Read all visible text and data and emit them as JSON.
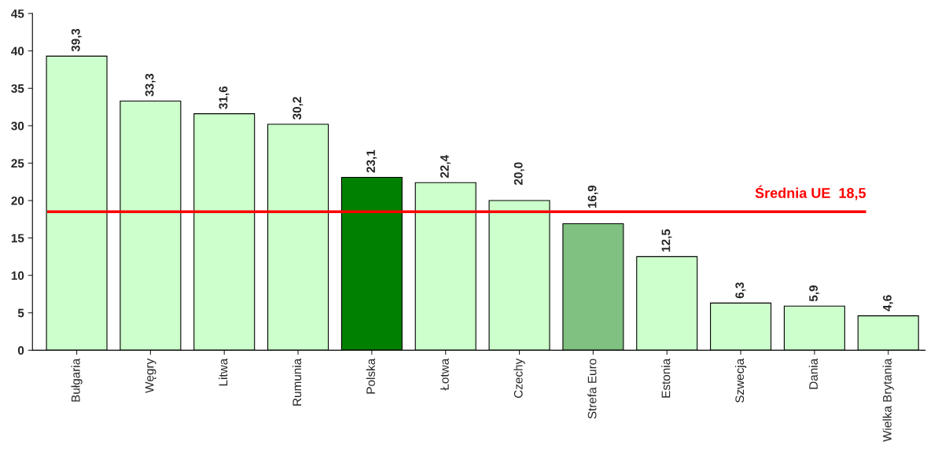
{
  "chart_data": {
    "type": "bar",
    "categories": [
      "Bułgaria",
      "Węgry",
      "Litwa",
      "Rumunia",
      "Polska",
      "Łotwa",
      "Czechy",
      "Strefa Euro",
      "Estonia",
      "Szwecja",
      "Dania",
      "Wielka Brytania"
    ],
    "values": [
      39.3,
      33.3,
      31.6,
      30.2,
      23.1,
      22.4,
      20.0,
      16.9,
      12.5,
      6.3,
      5.9,
      4.6
    ],
    "value_labels": [
      "39,3",
      "33,3",
      "31,6",
      "30,2",
      "23,1",
      "22,4",
      "20,0",
      "16,9",
      "12,5",
      "6,3",
      "5,9",
      "4,6"
    ],
    "colors": [
      "#ccffcc",
      "#ccffcc",
      "#ccffcc",
      "#ccffcc",
      "#008000",
      "#ccffcc",
      "#ccffcc",
      "#80c080",
      "#ccffcc",
      "#ccffcc",
      "#ccffcc",
      "#ccffcc"
    ],
    "ylim": [
      0,
      45
    ],
    "yticks": [
      0,
      5,
      10,
      15,
      20,
      25,
      30,
      35,
      40,
      45
    ],
    "ref_lines": [
      {
        "axis": "y",
        "value": 18.5,
        "label": "Średnia UE  18,5",
        "color": "#ff0000"
      }
    ],
    "grid": false,
    "legend": false
  }
}
